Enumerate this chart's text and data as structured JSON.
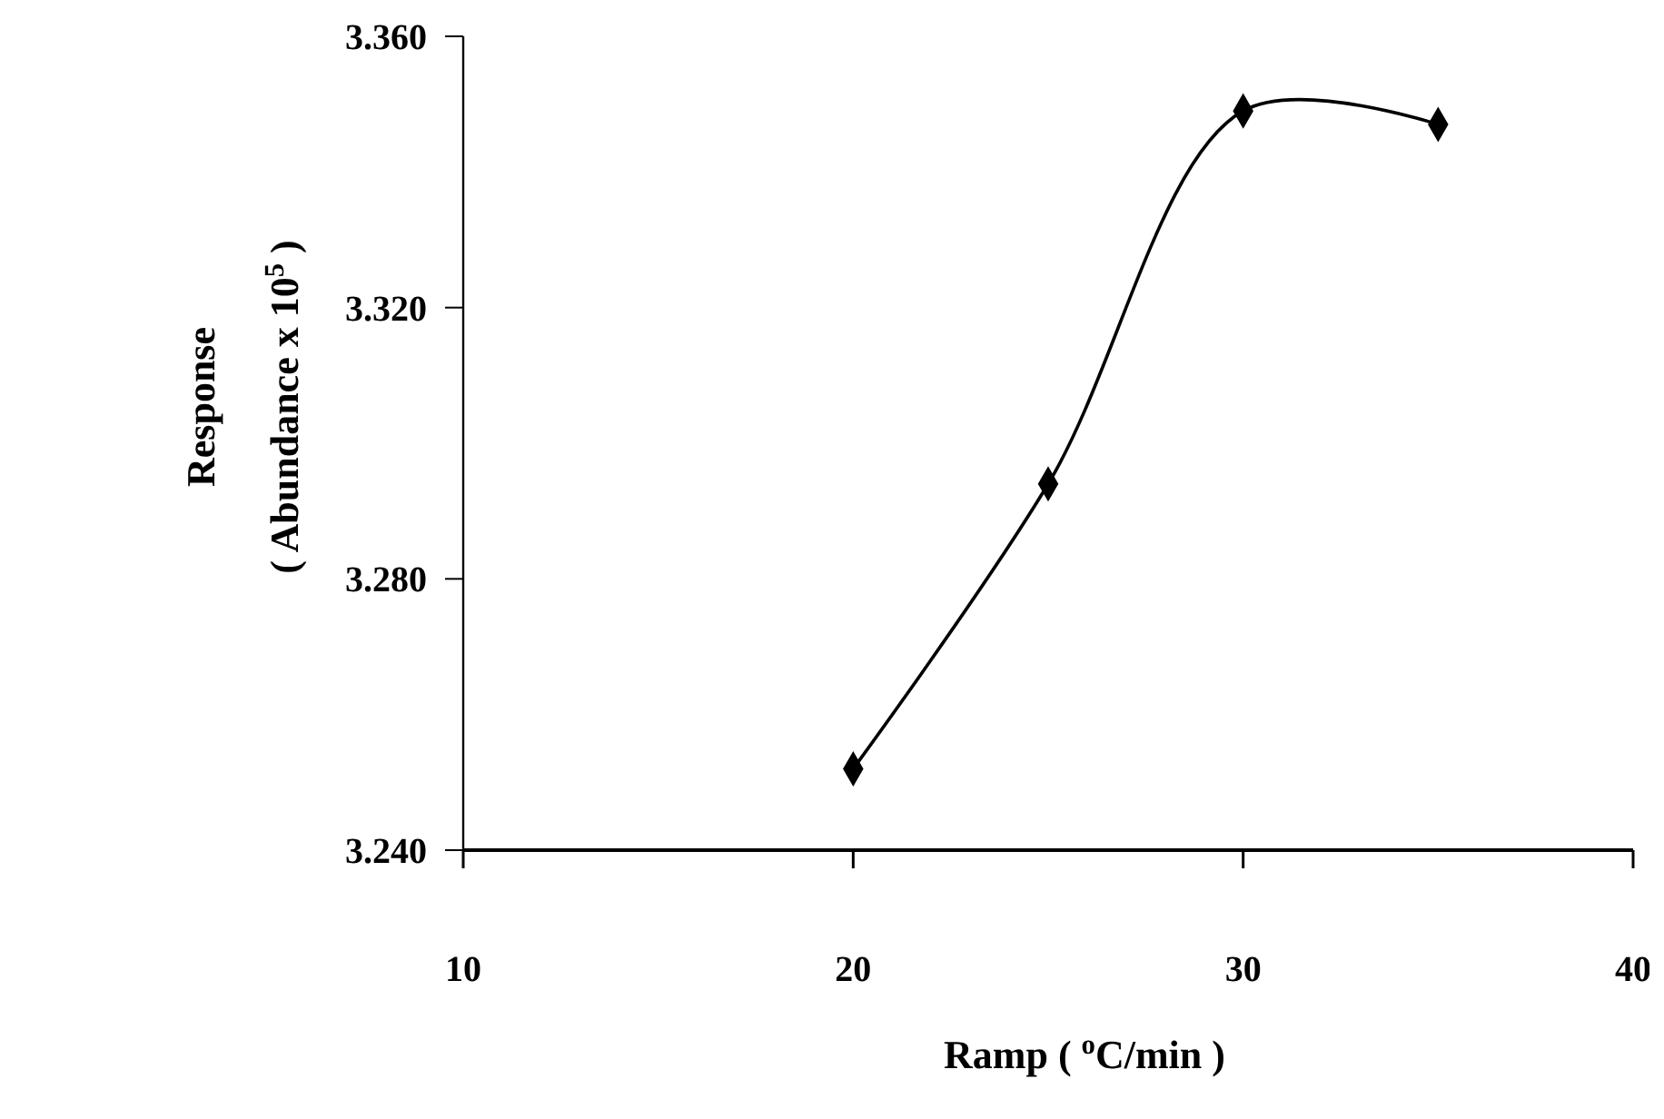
{
  "chart_data": {
    "type": "line",
    "xlabel": "Ramp ( $^{o}$C/min )",
    "ylabel": "Response\n( Abundance x 10$^{5}$ )",
    "x": [
      20,
      25,
      30,
      35
    ],
    "series": [
      {
        "color": "#000000",
        "values": [
          3.252,
          3.294,
          3.349,
          3.347
        ]
      }
    ],
    "xlim": [
      10,
      40
    ],
    "xticks": [
      10,
      20,
      30,
      40
    ],
    "ylim": [
      3.24,
      3.36
    ],
    "yticks": [
      {
        "value": 3.24,
        "label": "3.240"
      },
      {
        "value": 3.28,
        "label": "3.280"
      },
      {
        "value": 3.32,
        "label": "3.320"
      },
      {
        "value": 3.36,
        "label": "3.360"
      }
    ],
    "grid": false,
    "marker": "diamond",
    "line_style": "solid"
  }
}
